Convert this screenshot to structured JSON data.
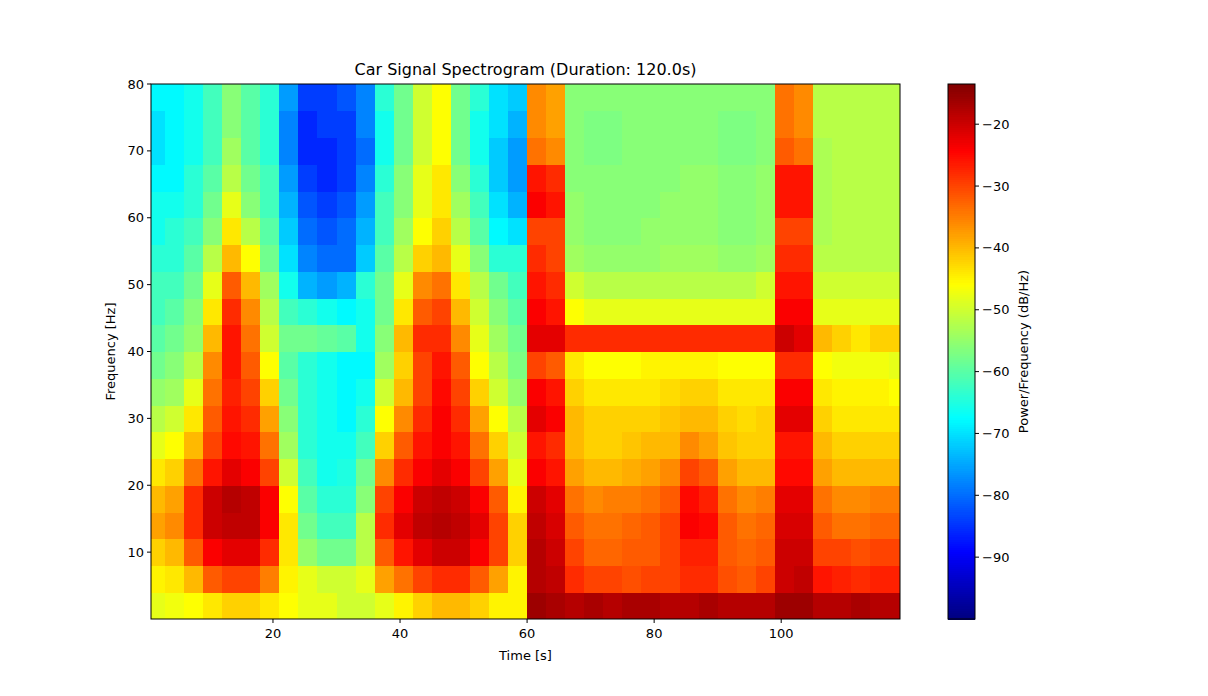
{
  "chart_data": {
    "type": "heatmap",
    "title": "Car Signal Spectrogram (Duration: 120.0s)",
    "x_label": "Time [s]",
    "y_label": "Frequency [Hz]",
    "xlim": [
      0.8,
      118.7
    ],
    "ylim": [
      0,
      80
    ],
    "xticks": [
      20,
      40,
      60,
      80,
      100
    ],
    "yticks": [
      10,
      20,
      30,
      40,
      50,
      60,
      70,
      80
    ],
    "x": [
      1.5,
      4.5,
      7.5,
      10.5,
      13.5,
      16.5,
      19.5,
      22.5,
      25.5,
      28.5,
      31.5,
      34.5,
      37.5,
      40.5,
      43.5,
      46.5,
      49.5,
      52.5,
      55.5,
      58.5,
      61.5,
      64.5,
      67.5,
      70.5,
      73.5,
      76.5,
      79.5,
      82.5,
      85.5,
      88.5,
      91.5,
      94.5,
      97.5,
      100.5,
      103.5,
      106.5,
      109.5,
      112.5,
      115.5,
      118.5
    ],
    "y": [
      2,
      6,
      10,
      14,
      18,
      22,
      26,
      30,
      34,
      38,
      42,
      46,
      50,
      54,
      58,
      62,
      66,
      70,
      74,
      78
    ],
    "cells": [
      [
        -48,
        -47,
        -46,
        -44,
        -42,
        -42,
        -44,
        -46,
        -48,
        -48,
        -50,
        -50,
        -48,
        -45,
        -42,
        -40,
        -40,
        -42,
        -45,
        -45,
        -16,
        -17,
        -18,
        -17,
        -18,
        -17,
        -17,
        -18,
        -18,
        -17,
        -18,
        -18,
        -18,
        -16,
        -16,
        -18,
        -18,
        -17,
        -18,
        -18
      ],
      [
        -45,
        -44,
        -40,
        -32,
        -30,
        -30,
        -35,
        -45,
        -48,
        -50,
        -50,
        -48,
        -38,
        -34,
        -30,
        -28,
        -28,
        -32,
        -38,
        -45,
        -18,
        -19,
        -28,
        -30,
        -30,
        -31,
        -30,
        -30,
        -28,
        -28,
        -31,
        -32,
        -30,
        -20,
        -19,
        -26,
        -27,
        -28,
        -27,
        -27
      ],
      [
        -42,
        -40,
        -32,
        -24,
        -22,
        -22,
        -28,
        -44,
        -55,
        -58,
        -58,
        -52,
        -32,
        -26,
        -22,
        -20,
        -20,
        -24,
        -30,
        -42,
        -18,
        -20,
        -30,
        -33,
        -33,
        -32,
        -32,
        -30,
        -27,
        -27,
        -32,
        -33,
        -32,
        -20,
        -20,
        -30,
        -30,
        -31,
        -30,
        -30
      ],
      [
        -38,
        -36,
        -28,
        -20,
        -19,
        -19,
        -24,
        -44,
        -58,
        -62,
        -62,
        -52,
        -28,
        -22,
        -19,
        -18,
        -19,
        -22,
        -30,
        -42,
        -19,
        -21,
        -32,
        -34,
        -34,
        -33,
        -32,
        -30,
        -24,
        -25,
        -32,
        -34,
        -33,
        -21,
        -21,
        -32,
        -34,
        -34,
        -33,
        -33
      ],
      [
        -40,
        -38,
        -28,
        -20,
        -18,
        -19,
        -24,
        -46,
        -60,
        -64,
        -64,
        -56,
        -30,
        -24,
        -20,
        -19,
        -20,
        -24,
        -32,
        -45,
        -20,
        -22,
        -34,
        -36,
        -35,
        -35,
        -34,
        -32,
        -25,
        -27,
        -34,
        -36,
        -35,
        -22,
        -22,
        -34,
        -36,
        -36,
        -35,
        -35
      ],
      [
        -44,
        -42,
        -34,
        -26,
        -22,
        -24,
        -30,
        -50,
        -62,
        -66,
        -65,
        -58,
        -36,
        -28,
        -24,
        -22,
        -24,
        -30,
        -38,
        -48,
        -24,
        -26,
        -38,
        -40,
        -40,
        -39,
        -38,
        -36,
        -30,
        -32,
        -38,
        -40,
        -40,
        -25,
        -25,
        -38,
        -40,
        -40,
        -40,
        -40
      ],
      [
        -48,
        -46,
        -40,
        -30,
        -25,
        -26,
        -34,
        -54,
        -64,
        -66,
        -66,
        -62,
        -42,
        -32,
        -26,
        -24,
        -26,
        -34,
        -42,
        -50,
        -26,
        -28,
        -40,
        -42,
        -42,
        -41,
        -40,
        -40,
        -36,
        -38,
        -41,
        -42,
        -42,
        -26,
        -26,
        -40,
        -42,
        -42,
        -42,
        -42
      ],
      [
        -52,
        -50,
        -44,
        -32,
        -26,
        -28,
        -38,
        -56,
        -64,
        -66,
        -68,
        -64,
        -46,
        -36,
        -28,
        -24,
        -28,
        -38,
        -46,
        -52,
        -22,
        -24,
        -40,
        -42,
        -42,
        -42,
        -42,
        -41,
        -40,
        -40,
        -42,
        -43,
        -42,
        -22,
        -22,
        -42,
        -44,
        -44,
        -44,
        -44
      ],
      [
        -55,
        -54,
        -48,
        -34,
        -27,
        -30,
        -42,
        -58,
        -64,
        -66,
        -68,
        -66,
        -50,
        -40,
        -30,
        -25,
        -30,
        -42,
        -50,
        -55,
        -24,
        -26,
        -42,
        -44,
        -44,
        -44,
        -44,
        -43,
        -42,
        -42,
        -44,
        -44,
        -44,
        -24,
        -24,
        -44,
        -45,
        -45,
        -45,
        -46
      ],
      [
        -58,
        -56,
        -52,
        -36,
        -26,
        -32,
        -46,
        -60,
        -64,
        -66,
        -68,
        -68,
        -54,
        -42,
        -30,
        -26,
        -32,
        -46,
        -52,
        -57,
        -30,
        -32,
        -44,
        -46,
        -46,
        -46,
        -45,
        -45,
        -45,
        -45,
        -46,
        -46,
        -46,
        -28,
        -28,
        -46,
        -47,
        -47,
        -47,
        -48
      ],
      [
        -60,
        -58,
        -55,
        -40,
        -26,
        -34,
        -50,
        -58,
        -58,
        -59,
        -60,
        -66,
        -56,
        -40,
        -28,
        -28,
        -36,
        -48,
        -54,
        -58,
        -22,
        -22,
        -28,
        -28,
        -28,
        -28,
        -28,
        -28,
        -28,
        -28,
        -28,
        -28,
        -28,
        -20,
        -22,
        -40,
        -42,
        -44,
        -42,
        -42
      ],
      [
        -62,
        -60,
        -56,
        -44,
        -28,
        -36,
        -52,
        -62,
        -64,
        -66,
        -68,
        -66,
        -58,
        -44,
        -32,
        -30,
        -40,
        -50,
        -56,
        -60,
        -24,
        -26,
        -46,
        -48,
        -48,
        -48,
        -48,
        -48,
        -48,
        -48,
        -48,
        -48,
        -48,
        -24,
        -24,
        -48,
        -48,
        -48,
        -48,
        -48
      ],
      [
        -62,
        -62,
        -58,
        -48,
        -32,
        -40,
        -54,
        -66,
        -74,
        -76,
        -74,
        -64,
        -58,
        -48,
        -36,
        -34,
        -44,
        -52,
        -58,
        -62,
        -26,
        -28,
        -50,
        -52,
        -52,
        -52,
        -52,
        -52,
        -52,
        -52,
        -52,
        -52,
        -50,
        -26,
        -26,
        -50,
        -50,
        -50,
        -50,
        -50
      ],
      [
        -64,
        -64,
        -60,
        -52,
        -40,
        -46,
        -58,
        -70,
        -78,
        -80,
        -80,
        -72,
        -60,
        -52,
        -42,
        -40,
        -48,
        -56,
        -64,
        -64,
        -28,
        -30,
        -54,
        -55,
        -55,
        -55,
        -55,
        -54,
        -54,
        -54,
        -55,
        -55,
        -54,
        -28,
        -28,
        -52,
        -52,
        -52,
        -52,
        -52
      ],
      [
        -66,
        -64,
        -62,
        -56,
        -44,
        -52,
        -60,
        -72,
        -80,
        -82,
        -80,
        -74,
        -62,
        -54,
        -46,
        -42,
        -52,
        -60,
        -68,
        -70,
        -30,
        -30,
        -55,
        -56,
        -56,
        -56,
        -55,
        -55,
        -55,
        -55,
        -56,
        -56,
        -55,
        -30,
        -30,
        -53,
        -52,
        -52,
        -52,
        -52
      ],
      [
        -66,
        -66,
        -64,
        -58,
        -48,
        -56,
        -62,
        -74,
        -82,
        -84,
        -82,
        -76,
        -62,
        -56,
        -48,
        -44,
        -54,
        -62,
        -70,
        -74,
        -24,
        -26,
        -55,
        -56,
        -56,
        -56,
        -56,
        -55,
        -55,
        -55,
        -56,
        -56,
        -55,
        -26,
        -26,
        -53,
        -52,
        -52,
        -52,
        -52
      ],
      [
        -68,
        -68,
        -64,
        -60,
        -52,
        -58,
        -62,
        -76,
        -84,
        -86,
        -84,
        -78,
        -64,
        -56,
        -48,
        -44,
        -56,
        -64,
        -72,
        -76,
        -26,
        -28,
        -56,
        -56,
        -56,
        -56,
        -56,
        -56,
        -55,
        -55,
        -56,
        -56,
        -55,
        -26,
        -26,
        -53,
        -52,
        -52,
        -52,
        -52
      ],
      [
        -70,
        -68,
        -66,
        -62,
        -54,
        -60,
        -64,
        -78,
        -86,
        -86,
        -84,
        -80,
        -66,
        -58,
        -50,
        -46,
        -58,
        -66,
        -72,
        -76,
        -34,
        -36,
        -56,
        -57,
        -57,
        -56,
        -56,
        -56,
        -56,
        -56,
        -57,
        -57,
        -56,
        -32,
        -34,
        -53,
        -52,
        -52,
        -52,
        -52
      ],
      [
        -70,
        -68,
        -66,
        -62,
        -56,
        -60,
        -64,
        -78,
        -86,
        -84,
        -84,
        -78,
        -66,
        -58,
        -50,
        -46,
        -58,
        -66,
        -70,
        -74,
        -36,
        -38,
        -56,
        -57,
        -57,
        -56,
        -56,
        -56,
        -56,
        -56,
        -57,
        -57,
        -56,
        -34,
        -36,
        -52,
        -52,
        -52,
        -52,
        -52
      ],
      [
        -68,
        -68,
        -66,
        -62,
        -56,
        -60,
        -64,
        -76,
        -84,
        -84,
        -82,
        -78,
        -64,
        -58,
        -50,
        -46,
        -58,
        -64,
        -70,
        -72,
        -36,
        -38,
        -56,
        -56,
        -56,
        -56,
        -56,
        -56,
        -56,
        -56,
        -56,
        -56,
        -56,
        -34,
        -36,
        -52,
        -52,
        -52,
        -52,
        -52
      ]
    ],
    "colorbar_label": "Power/Frequency (dB/Hz)",
    "colorbar_range": [
      -100,
      -13.5
    ],
    "colorbar_ticks": [
      -90,
      -80,
      -70,
      -60,
      -50,
      -40,
      -30,
      -20
    ]
  }
}
